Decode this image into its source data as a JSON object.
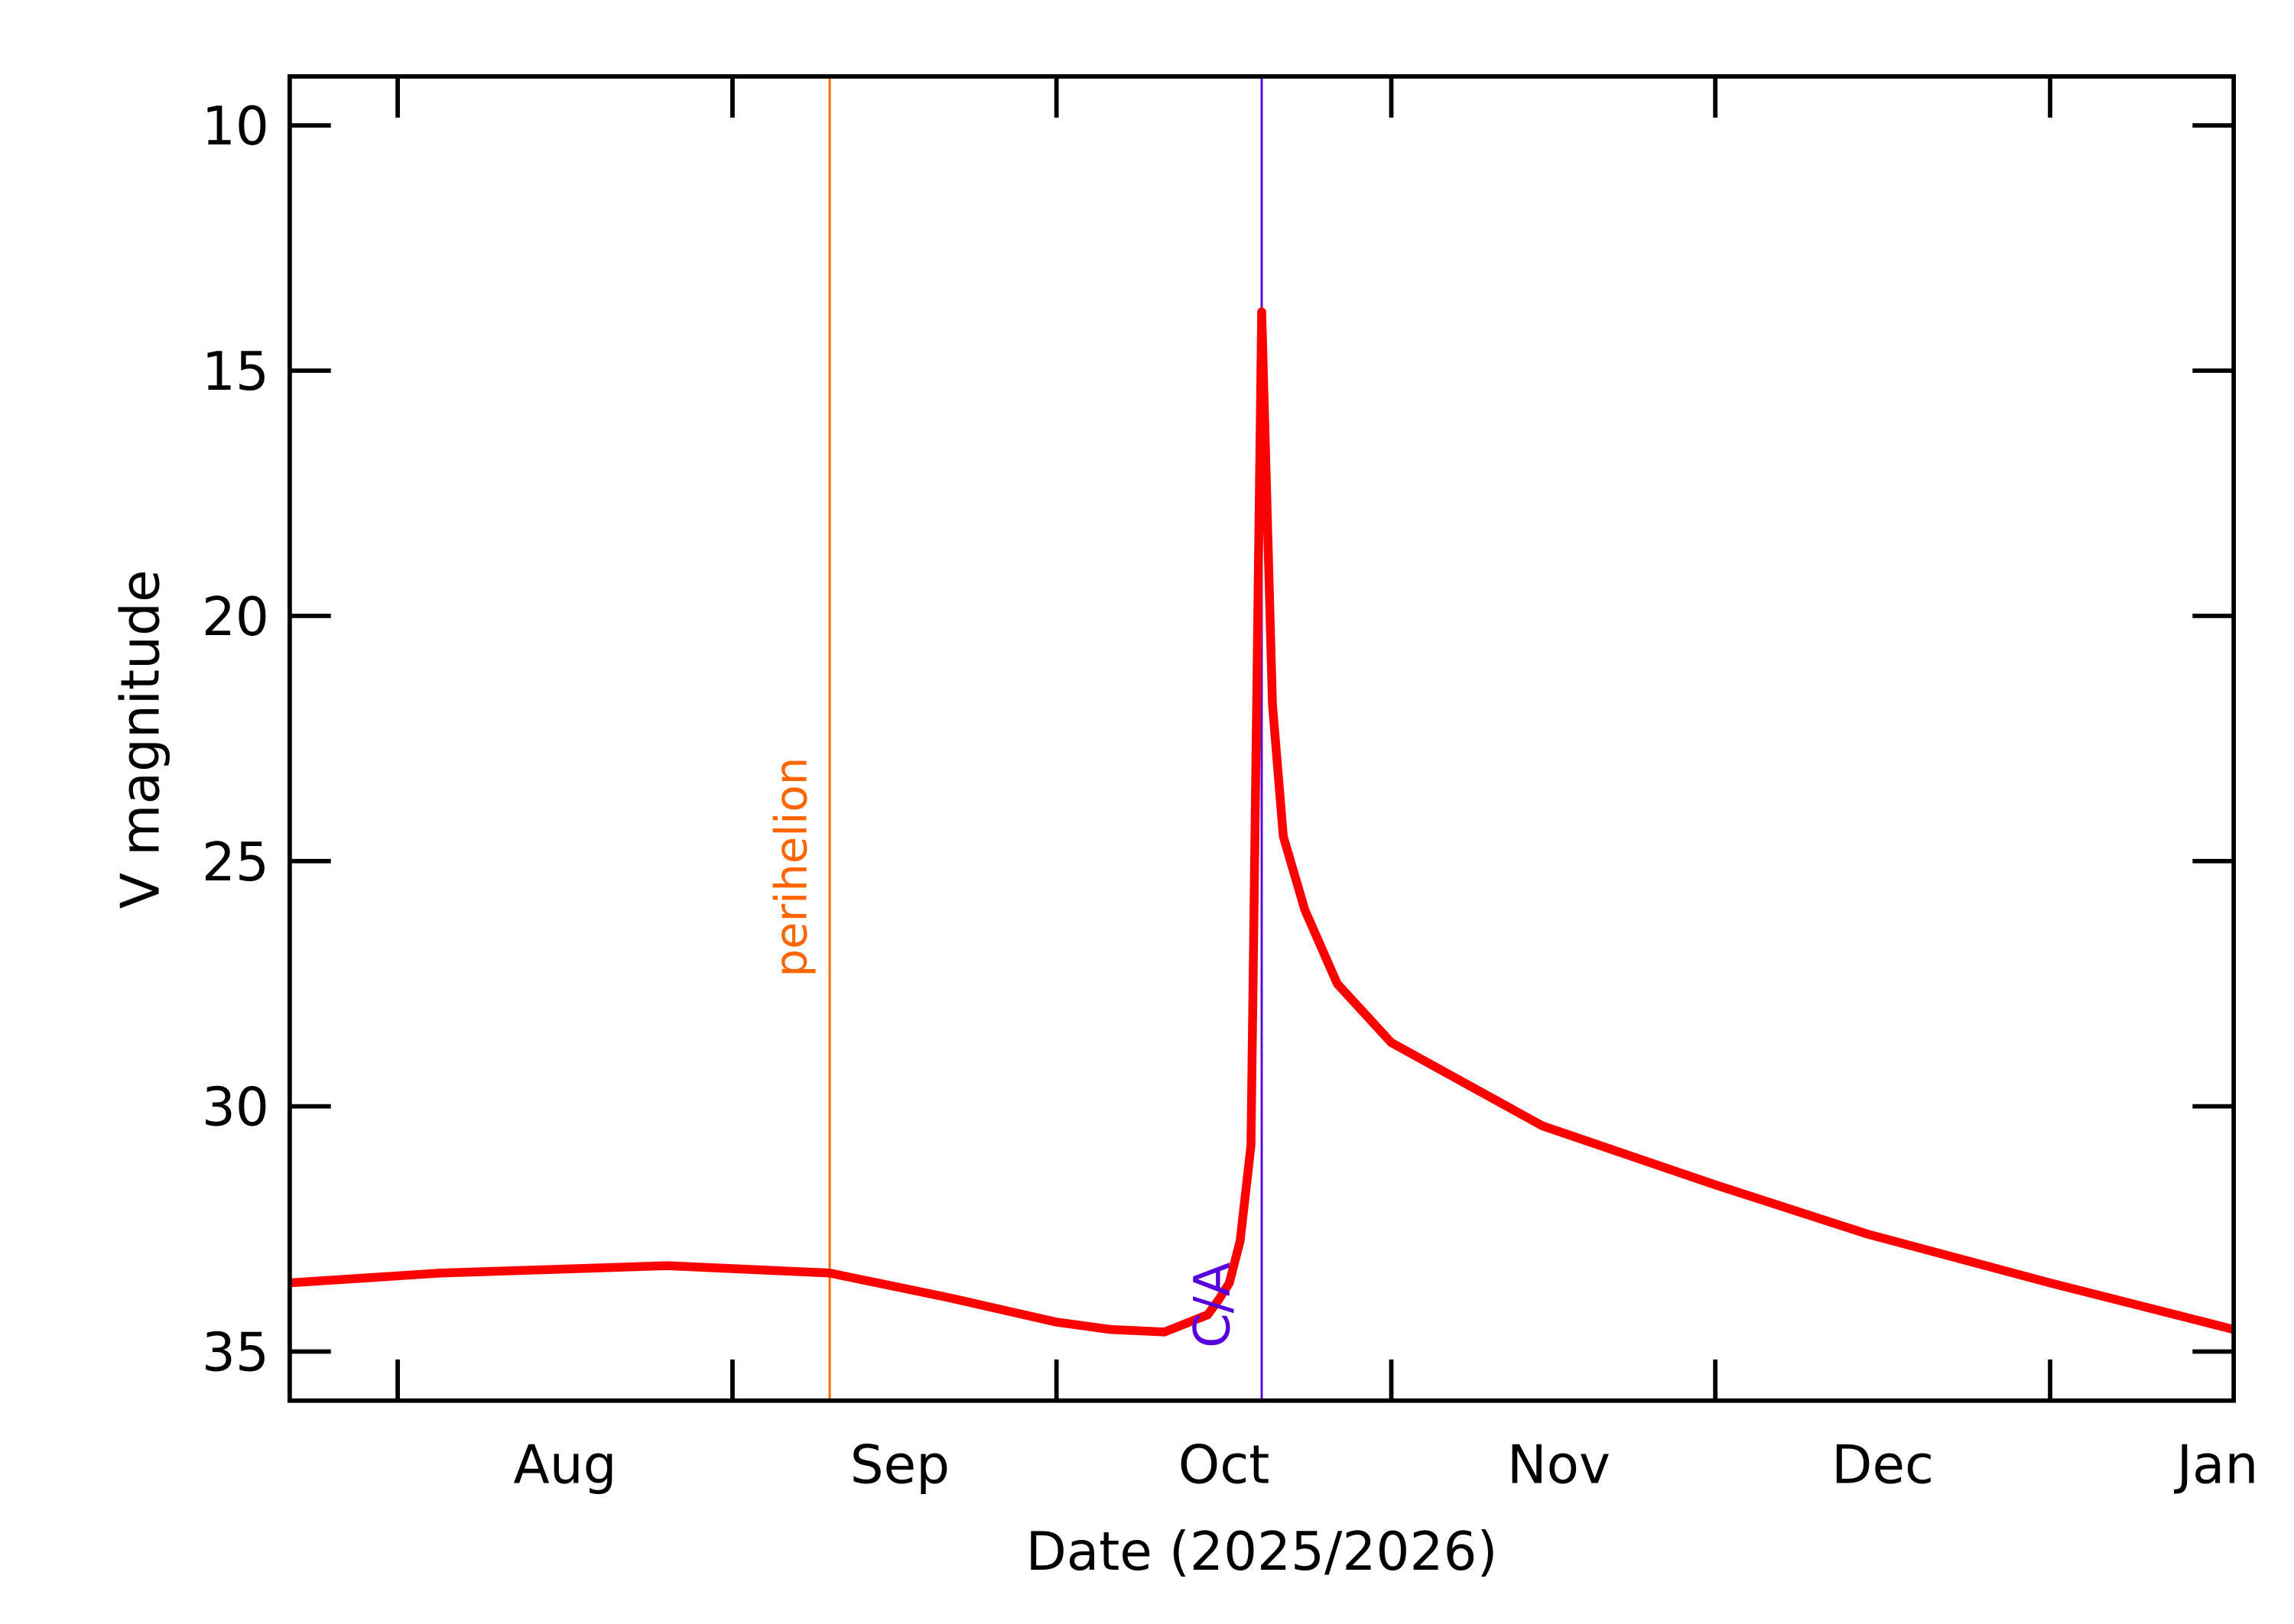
{
  "chart_data": {
    "type": "line",
    "xlabel": "Date (2025/2026)",
    "ylabel": "V magnitude",
    "x": [
      "2025-07-22",
      "2025-08-05",
      "2025-08-26",
      "2025-09-10",
      "2025-09-21",
      "2025-10-01",
      "2025-10-06",
      "2025-10-11",
      "2025-10-15",
      "2025-10-16",
      "2025-10-17",
      "2025-10-18",
      "2025-10-19",
      "2025-10-20",
      "2025-10-21",
      "2025-10-22",
      "2025-10-24",
      "2025-10-27",
      "2025-11-01",
      "2025-11-15",
      "2025-12-01",
      "2025-12-15",
      "2026-01-01",
      "2026-01-18"
    ],
    "values": [
      33.6,
      33.4,
      33.25,
      33.4,
      33.9,
      34.4,
      34.55,
      34.6,
      34.25,
      33.95,
      33.6,
      32.75,
      30.8,
      13.8,
      21.8,
      24.5,
      26,
      27.5,
      28.7,
      30.4,
      31.6,
      32.6,
      33.6,
      34.55
    ],
    "color": "#ff0000",
    "xlim": [
      "2025-07-22",
      "2026-01-18"
    ],
    "xticks": [
      {
        "value": "2025-08-01",
        "label": "Aug"
      },
      {
        "value": "2025-09-01",
        "label": "Sep"
      },
      {
        "value": "2025-10-01",
        "label": "Oct"
      },
      {
        "value": "2025-11-01",
        "label": "Nov"
      },
      {
        "value": "2025-12-01",
        "label": "Dec"
      },
      {
        "value": "2026-01-01",
        "label": "Jan"
      }
    ],
    "ylim": [
      36,
      9
    ],
    "yticks": [
      10,
      15,
      20,
      25,
      30,
      35
    ],
    "markers": [
      {
        "label": "perihelion",
        "x": "2025-09-10",
        "color": "#ff6600"
      },
      {
        "label": "C/A",
        "x": "2025-10-20",
        "color": "#5500dd"
      }
    ]
  }
}
